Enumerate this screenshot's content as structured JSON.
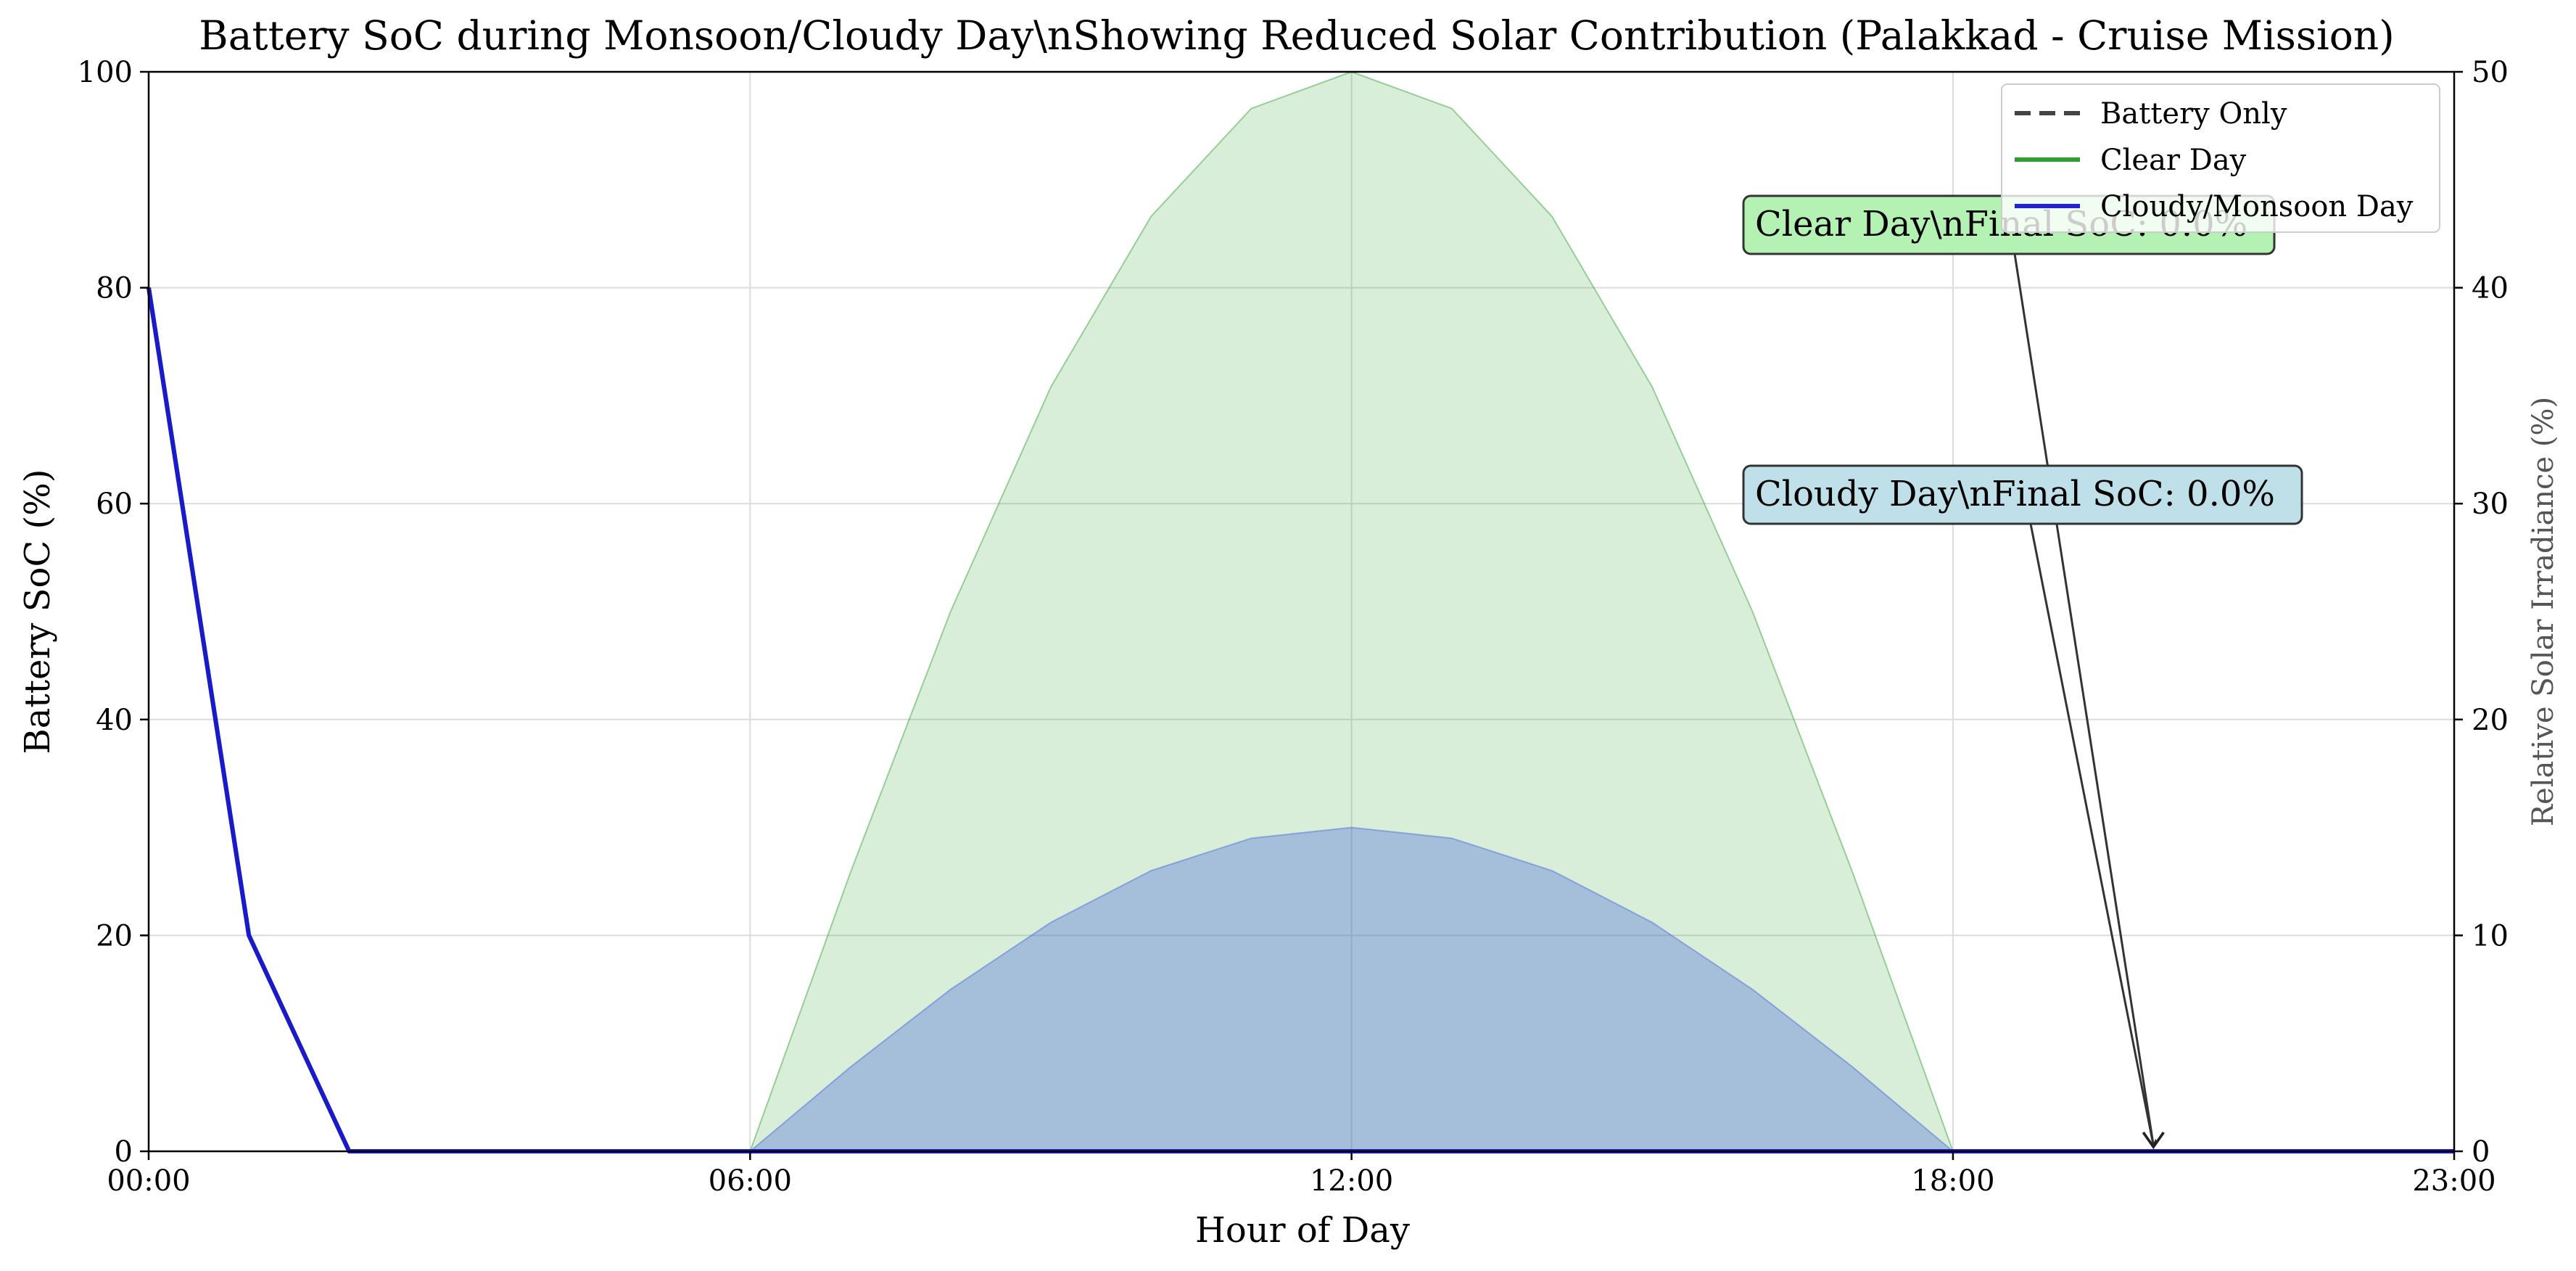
{
  "chart_data": {
    "type": "line",
    "title": "Battery SoC during Monsoon/Cloudy Day\\nShowing Reduced Solar Contribution (Palakkad - Cruise Mission)",
    "xlabel": "Hour of Day",
    "ylabel": "Battery SoC (%)",
    "y2label": "Relative Solar Irradiance (%)",
    "xlim": [
      0,
      23
    ],
    "ylim": [
      0,
      100
    ],
    "y2lim": [
      0,
      50
    ],
    "xticks": [
      0,
      6,
      12,
      18,
      23
    ],
    "xtick_labels": [
      "00:00",
      "06:00",
      "12:00",
      "18:00",
      "23:00"
    ],
    "yticks": [
      0,
      20,
      40,
      60,
      80,
      100
    ],
    "y2ticks": [
      0,
      10,
      20,
      30,
      40,
      50
    ],
    "grid": true,
    "legend_position": "top-right",
    "legend": [
      {
        "label": "Battery Only",
        "color": "#444444",
        "style": "dashed"
      },
      {
        "label": "Clear Day",
        "color": "#2ca02c",
        "style": "solid"
      },
      {
        "label": "Cloudy/Monsoon Day",
        "color": "#2222dd",
        "style": "solid"
      }
    ],
    "series": [
      {
        "name": "Battery Only",
        "axis": "left",
        "color": "#444444",
        "x": [
          0,
          1,
          2,
          3,
          4,
          5,
          6,
          7,
          8,
          9,
          10,
          11,
          12,
          13,
          14,
          15,
          16,
          17,
          18,
          19,
          20,
          21,
          22,
          23
        ],
        "values": [
          80,
          20,
          0,
          0,
          0,
          0,
          0,
          0,
          0,
          0,
          0,
          0,
          0,
          0,
          0,
          0,
          0,
          0,
          0,
          0,
          0,
          0,
          0,
          0
        ]
      },
      {
        "name": "Clear Day",
        "axis": "left",
        "color": "#2ca02c",
        "x": [
          0,
          1,
          2,
          3,
          4,
          5,
          6,
          7,
          8,
          9,
          10,
          11,
          12,
          13,
          14,
          15,
          16,
          17,
          18,
          19,
          20,
          21,
          22,
          23
        ],
        "values": [
          80,
          20,
          0,
          0,
          0,
          0,
          0,
          0,
          0,
          0,
          0,
          0,
          0,
          0,
          0,
          0,
          0,
          0,
          0,
          0,
          0,
          0,
          0,
          0
        ]
      },
      {
        "name": "Cloudy/Monsoon Day",
        "axis": "left",
        "color": "#1a1acc",
        "x": [
          0,
          1,
          2,
          3,
          4,
          5,
          6,
          7,
          8,
          9,
          10,
          11,
          12,
          13,
          14,
          15,
          16,
          17,
          18,
          19,
          20,
          21,
          22,
          23
        ],
        "values": [
          80,
          20,
          0,
          0,
          0,
          0,
          0,
          0,
          0,
          0,
          0,
          0,
          0,
          0,
          0,
          0,
          0,
          0,
          0,
          0,
          0,
          0,
          0,
          0
        ]
      }
    ],
    "areas": [
      {
        "axis": "right",
        "color": "#2ca02c",
        "opacity": 0.18,
        "x": [
          6,
          7,
          8,
          9,
          10,
          11,
          12,
          13,
          14,
          15,
          16,
          17,
          18
        ],
        "values": [
          0,
          12.9,
          25,
          35.4,
          43.3,
          48.3,
          50,
          48.3,
          43.3,
          35.4,
          25,
          12.9,
          0
        ]
      },
      {
        "axis": "right",
        "color": "#4466dd",
        "opacity": 0.35,
        "x": [
          6,
          7,
          8,
          9,
          10,
          11,
          12,
          13,
          14,
          15,
          16,
          17,
          18
        ],
        "values": [
          0,
          3.9,
          7.5,
          10.6,
          13,
          14.5,
          15,
          14.5,
          13,
          10.6,
          7.5,
          3.9,
          0
        ]
      }
    ],
    "annotations": [
      {
        "text": "Clear Day\\nFinal SoC: 0.0%",
        "target_x": 20,
        "target_y": 0,
        "box_color": "#b3f2b3"
      },
      {
        "text": "Cloudy Day\\nFinal SoC: 0.0%",
        "target_x": 20,
        "target_y": 0,
        "box_color": "#bfe0e8"
      }
    ]
  }
}
